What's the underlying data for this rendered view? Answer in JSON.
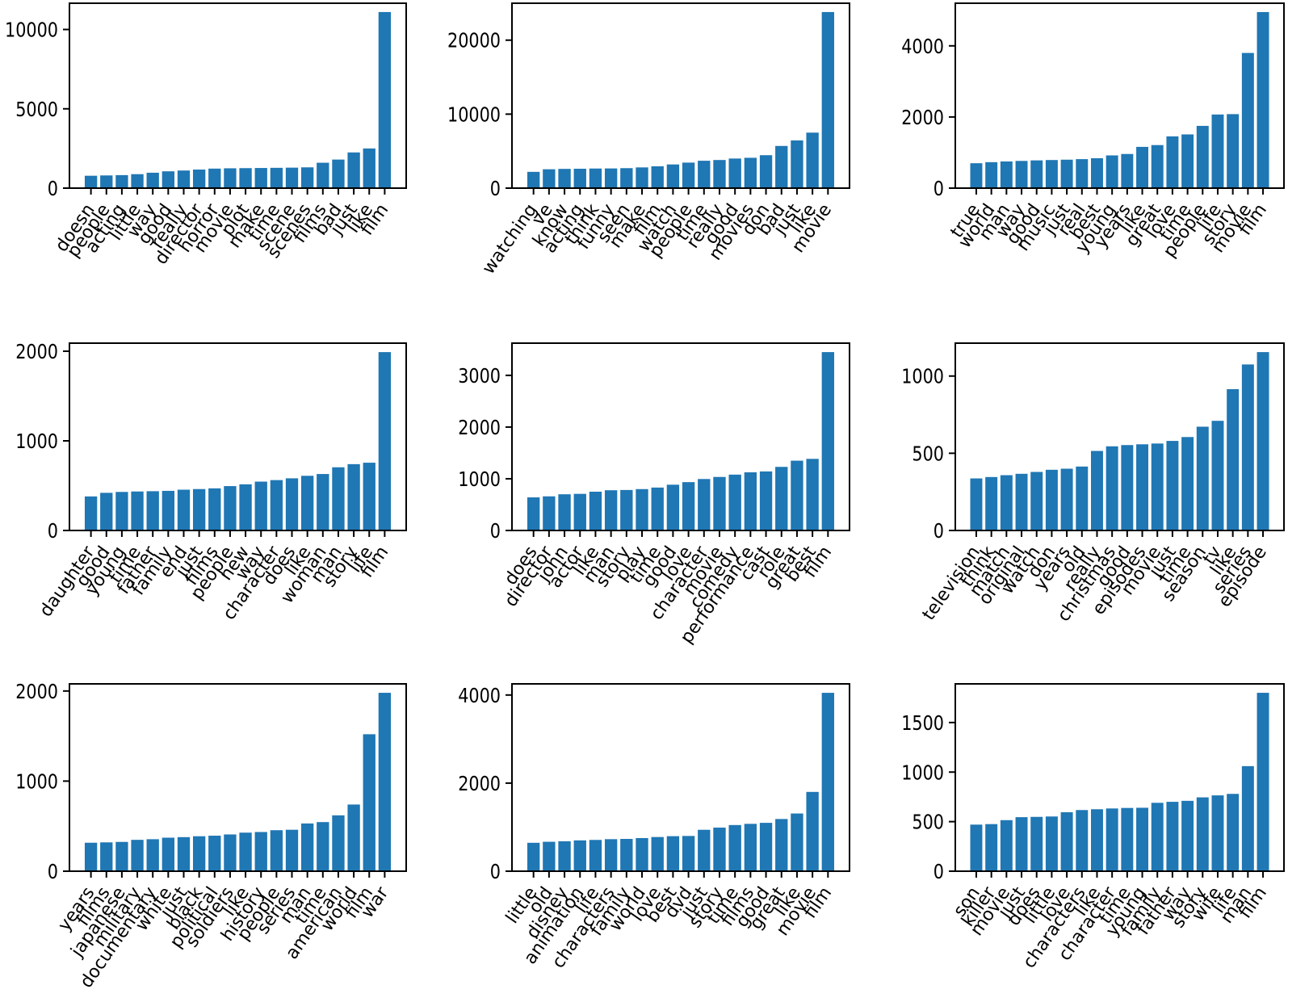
{
  "figure": {
    "background": "#ffffff",
    "bar_color": "#1f77b4",
    "axis_color": "#000000",
    "text_color": "#000000",
    "grid": "off",
    "legend": "none"
  },
  "chart_data": [
    {
      "type": "bar",
      "position": "row1-col1",
      "title": "",
      "xlabel": "",
      "ylabel": "",
      "categories": [
        "doesn",
        "people",
        "acting",
        "little",
        "way",
        "good",
        "really",
        "director",
        "horror",
        "movie",
        "plot",
        "make",
        "time",
        "scene",
        "scenes",
        "films",
        "bad",
        "just",
        "like",
        "film"
      ],
      "values": [
        780,
        800,
        820,
        880,
        970,
        1060,
        1110,
        1170,
        1230,
        1250,
        1260,
        1270,
        1280,
        1290,
        1310,
        1600,
        1800,
        2250,
        2500,
        11100
      ],
      "yticks": [
        0,
        5000,
        10000
      ],
      "ylim": [
        0,
        11655
      ]
    },
    {
      "type": "bar",
      "position": "row1-col2",
      "title": "",
      "xlabel": "",
      "ylabel": "",
      "categories": [
        "watching",
        "ve",
        "know",
        "acting",
        "think",
        "funny",
        "seen",
        "make",
        "film",
        "watch",
        "people",
        "time",
        "really",
        "good",
        "movies",
        "don",
        "bad",
        "just",
        "like",
        "movie"
      ],
      "values": [
        2200,
        2550,
        2600,
        2620,
        2650,
        2660,
        2700,
        2800,
        2950,
        3200,
        3450,
        3700,
        3800,
        4000,
        4100,
        4450,
        5700,
        6450,
        7500,
        23800
      ],
      "yticks": [
        0,
        10000,
        20000
      ],
      "ylim": [
        0,
        24990
      ]
    },
    {
      "type": "bar",
      "position": "row1-col3",
      "title": "",
      "xlabel": "",
      "ylabel": "",
      "categories": [
        "true",
        "world",
        "man",
        "way",
        "good",
        "music",
        "just",
        "real",
        "best",
        "young",
        "years",
        "like",
        "great",
        "love",
        "time",
        "people",
        "life",
        "story",
        "movie",
        "film"
      ],
      "values": [
        700,
        730,
        750,
        765,
        780,
        790,
        800,
        815,
        840,
        920,
        960,
        1160,
        1210,
        1455,
        1510,
        1750,
        2070,
        2080,
        3800,
        4950
      ],
      "yticks": [
        0,
        2000,
        4000
      ],
      "ylim": [
        0,
        5198
      ]
    },
    {
      "type": "bar",
      "position": "row2-col1",
      "title": "",
      "xlabel": "",
      "ylabel": "",
      "categories": [
        "daughter",
        "good",
        "young",
        "time",
        "father",
        "family",
        "end",
        "just",
        "films",
        "people",
        "new",
        "way",
        "character",
        "does",
        "like",
        "woman",
        "man",
        "story",
        "life",
        "film"
      ],
      "values": [
        380,
        420,
        430,
        435,
        438,
        442,
        455,
        462,
        470,
        495,
        515,
        545,
        562,
        582,
        610,
        630,
        705,
        740,
        756,
        1990
      ],
      "yticks": [
        0,
        1000,
        2000
      ],
      "ylim": [
        0,
        2090
      ]
    },
    {
      "type": "bar",
      "position": "row2-col2",
      "title": "",
      "xlabel": "",
      "ylabel": "",
      "categories": [
        "does",
        "director",
        "john",
        "actor",
        "like",
        "man",
        "story",
        "play",
        "time",
        "good",
        "love",
        "character",
        "movie",
        "comedy",
        "performance",
        "cast",
        "role",
        "great",
        "best",
        "film"
      ],
      "values": [
        640,
        660,
        700,
        708,
        750,
        778,
        783,
        800,
        830,
        885,
        935,
        995,
        1035,
        1080,
        1125,
        1142,
        1230,
        1350,
        1385,
        3450
      ],
      "yticks": [
        0,
        1000,
        2000,
        3000
      ],
      "ylim": [
        0,
        3623
      ]
    },
    {
      "type": "bar",
      "position": "row2-col3",
      "title": "",
      "xlabel": "",
      "ylabel": "",
      "categories": [
        "television",
        "think",
        "match",
        "original",
        "watch",
        "don",
        "years",
        "old",
        "really",
        "christmas",
        "good",
        "episodes",
        "movie",
        "just",
        "time",
        "season",
        "tv",
        "like",
        "series",
        "episode"
      ],
      "values": [
        337,
        346,
        358,
        367,
        379,
        393,
        400,
        414,
        515,
        545,
        553,
        558,
        563,
        580,
        605,
        672,
        710,
        915,
        1075,
        1155
      ],
      "yticks": [
        0,
        500,
        1000
      ],
      "ylim": [
        0,
        1213
      ]
    },
    {
      "type": "bar",
      "position": "row3-col1",
      "title": "",
      "xlabel": "",
      "ylabel": "",
      "categories": [
        "years",
        "films",
        "japanese",
        "military",
        "documentary",
        "white",
        "just",
        "black",
        "political",
        "soldiers",
        "like",
        "history",
        "people",
        "series",
        "man",
        "time",
        "american",
        "world",
        "film",
        "war"
      ],
      "values": [
        316,
        320,
        325,
        348,
        355,
        372,
        378,
        388,
        394,
        408,
        428,
        435,
        455,
        460,
        530,
        545,
        620,
        740,
        1520,
        1980
      ],
      "yticks": [
        0,
        1000,
        2000
      ],
      "ylim": [
        0,
        2079
      ]
    },
    {
      "type": "bar",
      "position": "row3-col2",
      "title": "",
      "xlabel": "",
      "ylabel": "",
      "categories": [
        "little",
        "old",
        "disney",
        "animation",
        "life",
        "characters",
        "family",
        "world",
        "love",
        "best",
        "dvd",
        "just",
        "story",
        "time",
        "films",
        "good",
        "great",
        "like",
        "movie",
        "film"
      ],
      "values": [
        645,
        668,
        680,
        700,
        710,
        727,
        733,
        752,
        776,
        795,
        800,
        940,
        990,
        1048,
        1075,
        1098,
        1185,
        1310,
        1800,
        4050
      ],
      "yticks": [
        0,
        2000,
        4000
      ],
      "ylim": [
        0,
        4253
      ]
    },
    {
      "type": "bar",
      "position": "row3-col3",
      "title": "",
      "xlabel": "",
      "ylabel": "",
      "categories": [
        "son",
        "killer",
        "movie",
        "just",
        "does",
        "little",
        "love",
        "characters",
        "like",
        "character",
        "time",
        "young",
        "family",
        "father",
        "way",
        "story",
        "wife",
        "life",
        "man",
        "film"
      ],
      "values": [
        470,
        475,
        515,
        545,
        548,
        552,
        595,
        617,
        625,
        633,
        638,
        640,
        690,
        700,
        710,
        745,
        765,
        780,
        1060,
        1800
      ],
      "yticks": [
        0,
        500,
        1000,
        1500
      ],
      "ylim": [
        0,
        1890
      ]
    }
  ]
}
